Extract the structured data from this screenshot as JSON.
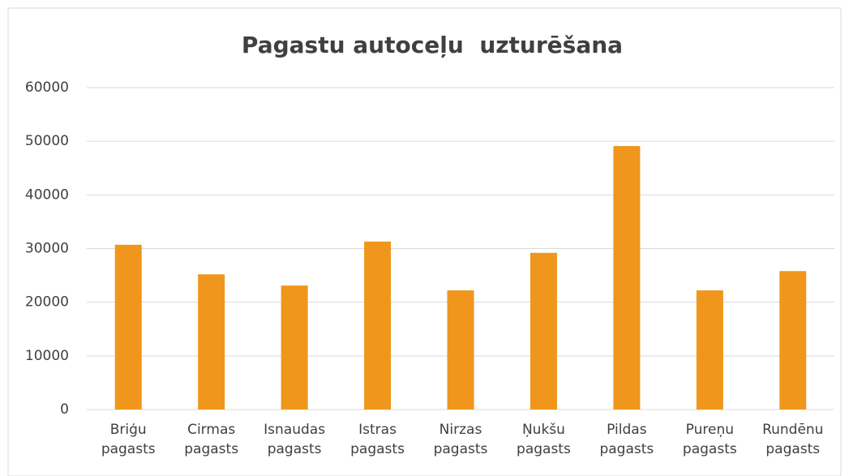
{
  "chart_data": {
    "type": "bar",
    "title": "Pagastu autoceļu  uzturēšana",
    "categories": [
      "Briģu pagasts",
      "Cirmas pagasts",
      "Isnaudas pagasts",
      "Istras pagasts",
      "Nirzas pagasts",
      "Ņukšu pagasts",
      "Pildas pagasts",
      "Pureņu pagasts",
      "Rundēnu pagasts"
    ],
    "values": [
      30700,
      25200,
      23100,
      31300,
      22200,
      29200,
      49100,
      22200,
      25800
    ],
    "color": "#f0961c",
    "ylim": [
      0,
      60000
    ],
    "yticks": [
      0,
      10000,
      20000,
      30000,
      40000,
      50000,
      60000
    ],
    "grid": true
  }
}
